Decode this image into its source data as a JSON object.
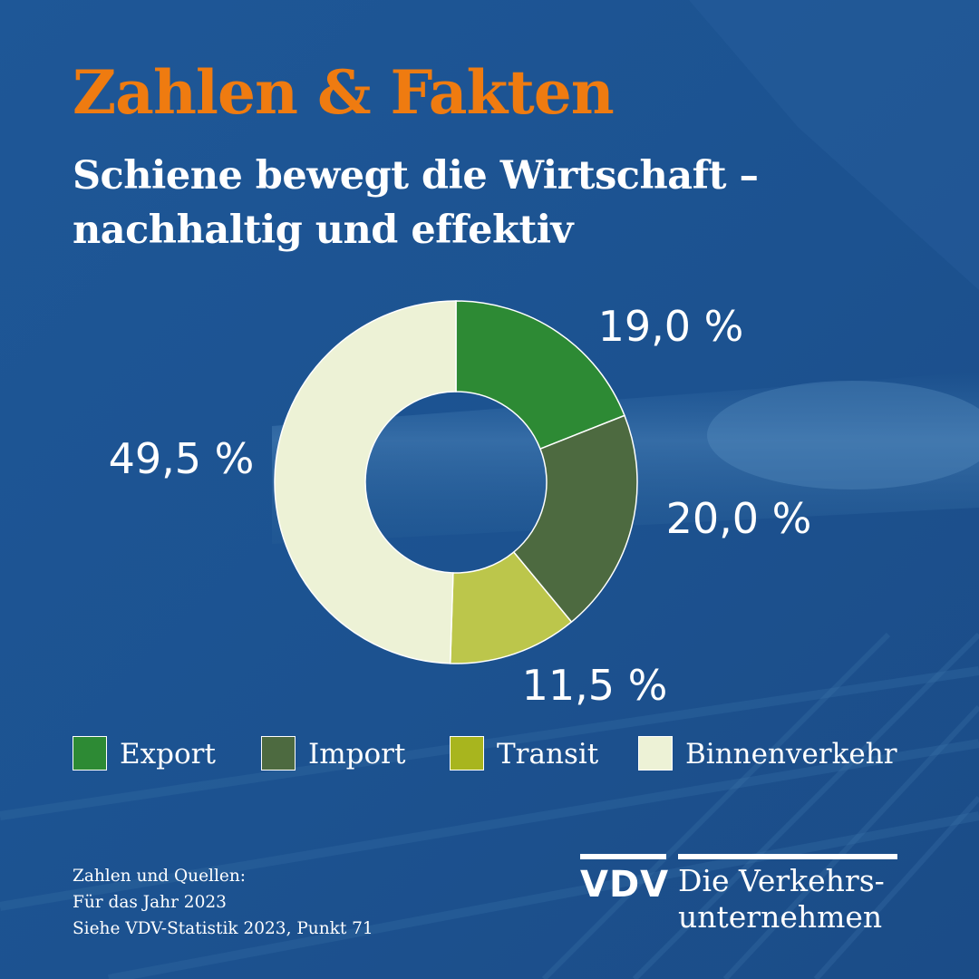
{
  "header": {
    "title": "Zahlen & Fakten",
    "subtitle_line1": "Schiene bewegt die Wirtschaft –",
    "subtitle_line2": "nachhaltig und effektiv"
  },
  "colors": {
    "background": "#1d5594",
    "title": "#ef7b10",
    "text": "#ffffff"
  },
  "chart_data": {
    "type": "pie",
    "donut": true,
    "unit": "%",
    "categories": [
      "Export",
      "Import",
      "Transit",
      "Binnenverkehr"
    ],
    "values": [
      19.0,
      20.0,
      11.5,
      49.5
    ],
    "labels": [
      "19,0 %",
      "20,0 %",
      "11,5 %",
      "49,5 %"
    ],
    "colors": [
      "#2d8a34",
      "#4d6a40",
      "#bcc64b",
      "#edf2d6"
    ],
    "start": "12 o'clock, clockwise"
  },
  "legend": [
    {
      "label": "Export",
      "color": "#2d8a34"
    },
    {
      "label": "Import",
      "color": "#4d6a40"
    },
    {
      "label": "Transit",
      "color": "#a8b51e"
    },
    {
      "label": "Binnenverkehr",
      "color": "#edf2d6"
    }
  ],
  "source": {
    "line1": "Zahlen und Quellen:",
    "line2": "Für das Jahr 2023",
    "line3": "Siehe VDV-Statistik 2023, Punkt 71"
  },
  "logo": {
    "abbr": "VDV",
    "name_line1": "Die Verkehrs-",
    "name_line2": "unternehmen"
  }
}
